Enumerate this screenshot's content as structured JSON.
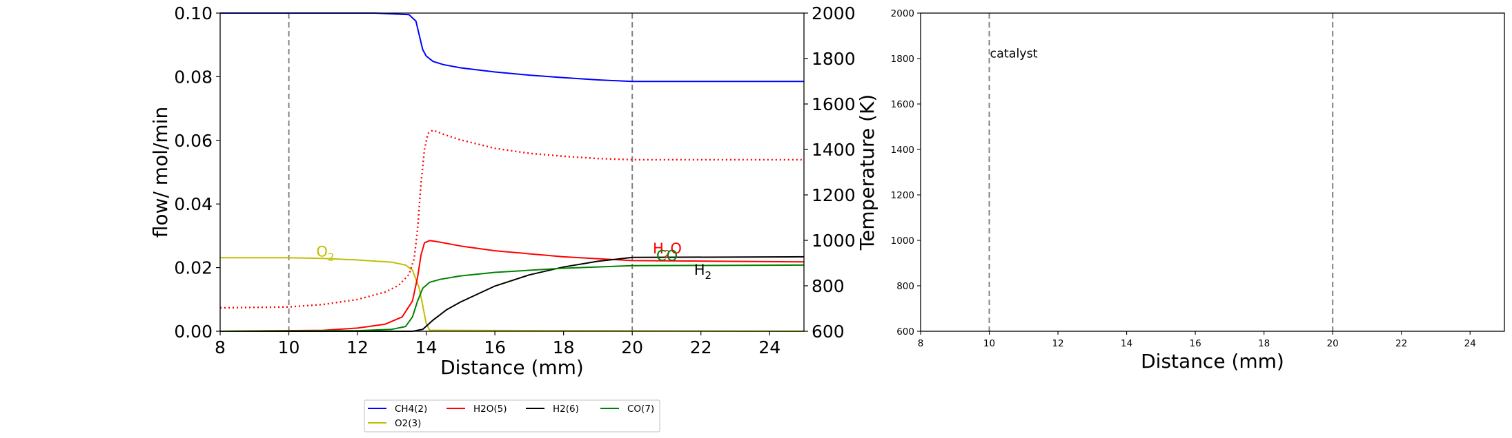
{
  "chart_data": [
    {
      "type": "line",
      "xlabel": "Distance (mm)",
      "ylabel": "flow/ mol/min",
      "y2label": "Temperature (K)",
      "xlim": [
        8,
        25
      ],
      "ylim": [
        0,
        0.1
      ],
      "y2lim": [
        600,
        2000
      ],
      "xticks": [
        "8",
        "10",
        "12",
        "14",
        "16",
        "18",
        "20",
        "22",
        "24"
      ],
      "yticks": [
        "0.00",
        "0.02",
        "0.04",
        "0.06",
        "0.08",
        "0.10"
      ],
      "y2ticks": [
        "600",
        "800",
        "1000",
        "1200",
        "1400",
        "1600",
        "1800",
        "2000"
      ],
      "vlines": [
        10,
        20
      ],
      "legend_position": "below",
      "series": [
        {
          "name": "CH4(2)",
          "color": "#0000ff",
          "axis": "left",
          "style": "solid",
          "x": [
            8,
            12.5,
            13.5,
            13.7,
            13.8,
            13.9,
            14.0,
            14.2,
            14.5,
            15,
            16,
            17,
            18,
            19,
            20,
            25
          ],
          "y": [
            0.1,
            0.1,
            0.0995,
            0.0975,
            0.093,
            0.0885,
            0.0865,
            0.0848,
            0.0838,
            0.0828,
            0.0815,
            0.0805,
            0.0797,
            0.079,
            0.0785,
            0.0785
          ]
        },
        {
          "name": "O2(3)",
          "color": "#bfbf00",
          "axis": "left",
          "style": "solid",
          "x": [
            8,
            10,
            11,
            12,
            13,
            13.4,
            13.6,
            13.8,
            13.9,
            14.0,
            14.1,
            25
          ],
          "y": [
            0.0231,
            0.0231,
            0.0229,
            0.0224,
            0.0217,
            0.0208,
            0.0192,
            0.0135,
            0.008,
            0.0025,
            0.0003,
            0.0
          ]
        },
        {
          "name": "H2O(5)",
          "color": "#ff0000",
          "axis": "left",
          "style": "solid",
          "x": [
            8,
            11,
            12,
            12.8,
            13.3,
            13.6,
            13.75,
            13.85,
            13.95,
            14.1,
            14.3,
            15,
            16,
            18,
            20,
            25
          ],
          "y": [
            0.0,
            0.0003,
            0.001,
            0.0022,
            0.0045,
            0.0095,
            0.017,
            0.024,
            0.0278,
            0.0285,
            0.0282,
            0.0268,
            0.0253,
            0.0234,
            0.0222,
            0.0218
          ]
        },
        {
          "name": "H2(6)",
          "color": "#000000",
          "axis": "left",
          "style": "solid",
          "x": [
            8,
            13.6,
            13.9,
            14.2,
            14.6,
            15,
            16,
            17,
            18,
            19,
            20,
            25
          ],
          "y": [
            0.0,
            0.0,
            0.0006,
            0.0035,
            0.0068,
            0.0092,
            0.0142,
            0.0177,
            0.0202,
            0.022,
            0.0232,
            0.0234
          ]
        },
        {
          "name": "CO(7)",
          "color": "#008000",
          "axis": "left",
          "style": "solid",
          "x": [
            8,
            12,
            13,
            13.4,
            13.6,
            13.75,
            13.9,
            14.1,
            14.4,
            15,
            16,
            18,
            20,
            25
          ],
          "y": [
            0.0,
            0.0002,
            0.0006,
            0.0015,
            0.0045,
            0.0095,
            0.0135,
            0.0154,
            0.0163,
            0.0174,
            0.0185,
            0.0198,
            0.0206,
            0.0208
          ]
        },
        {
          "name": "",
          "color": "#ff0000",
          "axis": "right",
          "style": "dotted",
          "x": [
            8,
            10,
            11,
            12,
            12.8,
            13.2,
            13.5,
            13.65,
            13.75,
            13.85,
            13.95,
            14.05,
            14.2,
            14.5,
            15,
            16,
            17,
            18,
            19,
            20,
            25
          ],
          "y": [
            703,
            707,
            718,
            740,
            772,
            802,
            850,
            920,
            1050,
            1250,
            1400,
            1470,
            1485,
            1467,
            1442,
            1405,
            1383,
            1370,
            1360,
            1355,
            1355
          ]
        }
      ],
      "annotations": [
        {
          "text": "O₂",
          "x": 10.8,
          "y": 0.0235,
          "color": "#bfbf00"
        },
        {
          "text": "H₂O",
          "x": 20.6,
          "y": 0.0245,
          "color": "#ff0000"
        },
        {
          "text": "CO",
          "x": 20.7,
          "y": 0.0222,
          "color": "#008000"
        },
        {
          "text": "H₂",
          "x": 21.8,
          "y": 0.0178,
          "color": "#000000"
        }
      ]
    },
    {
      "type": "line",
      "xlabel": "Distance (mm)",
      "xlim": [
        8,
        25
      ],
      "ylim": [
        600,
        2000
      ],
      "xticks": [
        "8",
        "10",
        "12",
        "14",
        "16",
        "18",
        "20",
        "22",
        "24"
      ],
      "yticks": [
        "600",
        "800",
        "1000",
        "1200",
        "1400",
        "1600",
        "1800",
        "2000"
      ],
      "vlines": [
        10,
        20
      ],
      "annotations": [
        {
          "text": "catalyst",
          "x": 10.0,
          "y": 1805,
          "color": "#000000"
        }
      ]
    }
  ],
  "legend": {
    "items": [
      {
        "label": "CH4(2)",
        "color": "#0000ff"
      },
      {
        "label": "H2O(5)",
        "color": "#ff0000"
      },
      {
        "label": "H2(6)",
        "color": "#000000"
      },
      {
        "label": "CO(7)",
        "color": "#008000"
      },
      {
        "label": "O2(3)",
        "color": "#bfbf00"
      }
    ]
  }
}
